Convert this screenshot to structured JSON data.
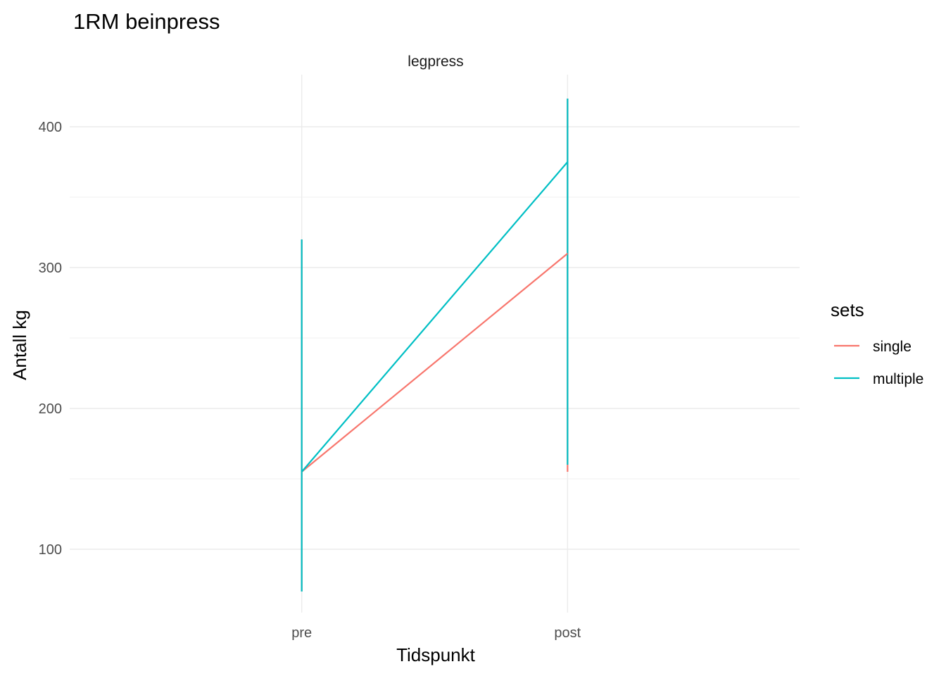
{
  "chart_data": {
    "type": "line",
    "title": "1RM beinpress",
    "facet": "legpress",
    "xlabel": "Tidspunkt",
    "ylabel": "Antall kg",
    "categories": [
      "pre",
      "post"
    ],
    "ylim": [
      55,
      437
    ],
    "yticks": [
      100,
      200,
      300,
      400
    ],
    "ytick_labels": [
      "100",
      "200",
      "300",
      "400"
    ],
    "grid": true,
    "legend": {
      "title": "sets",
      "position": "right"
    },
    "series": [
      {
        "name": "single",
        "color": "#F8766D",
        "values": [
          155,
          310
        ],
        "range": [
          [
            70,
            320
          ],
          [
            155,
            420
          ]
        ]
      },
      {
        "name": "multiple",
        "color": "#00BFC4",
        "values": [
          155,
          375
        ],
        "range": [
          [
            70,
            320
          ],
          [
            160,
            420
          ]
        ]
      }
    ]
  }
}
